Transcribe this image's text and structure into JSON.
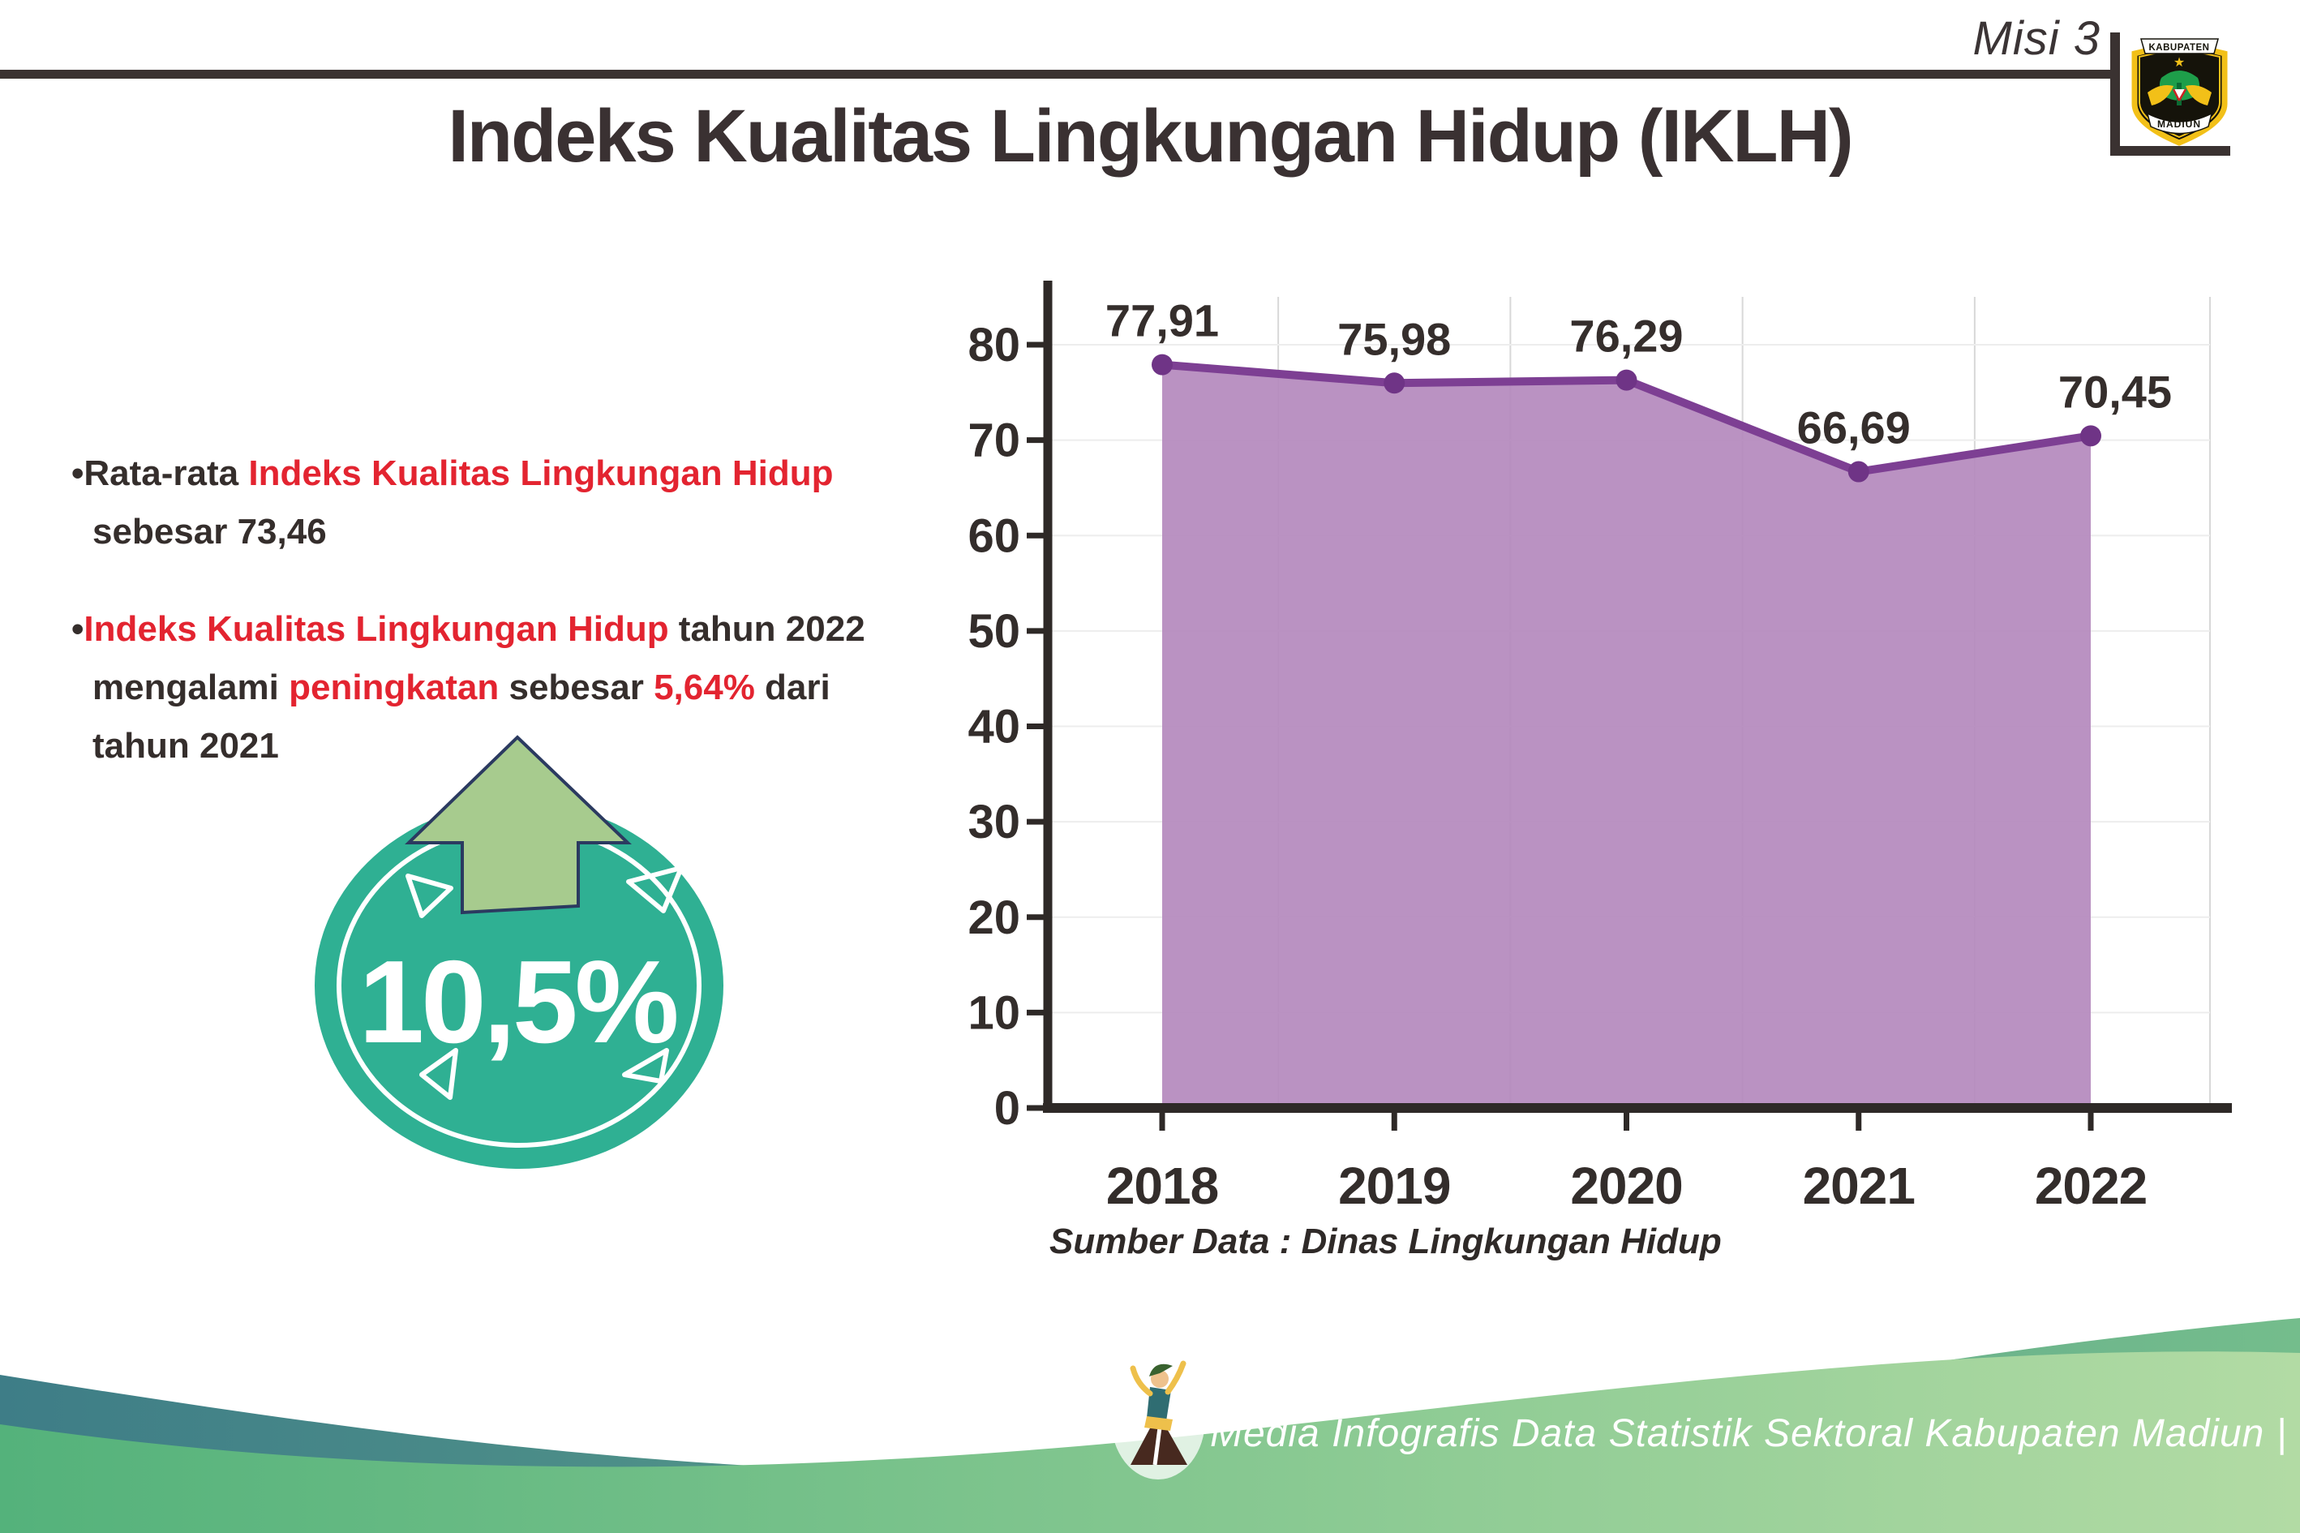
{
  "header": {
    "misi": "Misi 3",
    "title": "Indeks Kualitas Lingkungan Hidup (IKLH)",
    "logo_top": "KABUPATEN",
    "logo_bottom": "MADIUN"
  },
  "bullets": {
    "b1l1s1": "•Rata-rata ",
    "b1l1s2": "Indeks Kualitas Lingkungan Hidup",
    "b1l2s1": "sebesar 73,46",
    "b2l1s1": "•",
    "b2l1s2": "Indeks Kualitas Lingkungan Hidup",
    "b2l1s3": " tahun 2022",
    "b2l2s1": "mengalami ",
    "b2l2s2": "peningkatan",
    "b2l2s3": " sebesar ",
    "b2l2s4": "5,64%",
    "b2l2s5": " dari",
    "b2l3s1": "tahun 2021"
  },
  "badge": {
    "value": "10,5%"
  },
  "chart_data": {
    "type": "area",
    "title": "",
    "categories": [
      "2018",
      "2019",
      "2020",
      "2021",
      "2022"
    ],
    "values": [
      77.91,
      75.98,
      76.29,
      66.69,
      70.45
    ],
    "labels": [
      "77,91",
      "75,98",
      "76,29",
      "66,69",
      "70,45"
    ],
    "xlabel": "",
    "ylabel": "",
    "ylim": [
      0,
      85
    ],
    "yticks": [
      0,
      10,
      20,
      30,
      40,
      50,
      60,
      70,
      80
    ],
    "grid": true,
    "legend": "none",
    "source": "Sumber Data : Dinas Lingkungan Hidup"
  },
  "footer": {
    "credit": "Media Infografis Data Statistik Sektoral Kabupaten Madiun |"
  },
  "colors": {
    "text_dark": "#352e2c",
    "accent_red": "#e32430",
    "chart_fill": "#b489bd",
    "chart_line": "#7d3f93",
    "chart_marker": "#6f3486",
    "axis_dark": "#2e2927",
    "badge_teal": "#2fb093",
    "arrow_green": "#a7cb8e",
    "arrow_outline": "#2b3a60",
    "footer_teal": "#41808a",
    "footer_green": "#5bb57e"
  }
}
